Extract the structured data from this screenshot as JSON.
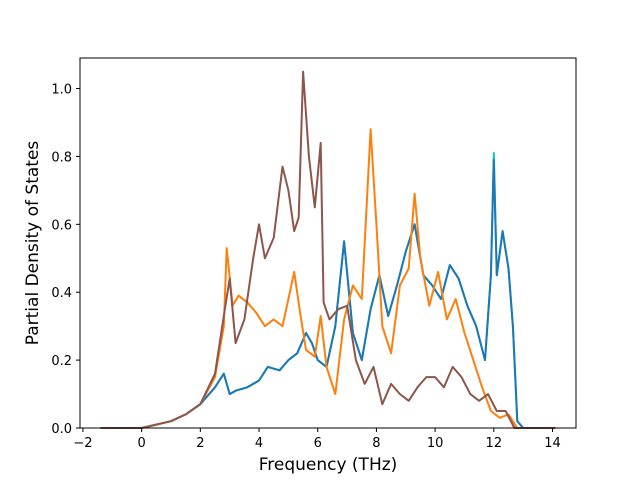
{
  "chart_data": {
    "type": "line",
    "title": "",
    "xlabel": "Frequency (THz)",
    "ylabel": "Partial Density of States",
    "xlim": [
      -2.1,
      14.8
    ],
    "ylim": [
      0.0,
      1.09
    ],
    "xticks": [
      -2,
      0,
      2,
      4,
      6,
      8,
      10,
      12,
      14
    ],
    "yticks": [
      0.0,
      0.2,
      0.4,
      0.6,
      0.8,
      1.0
    ],
    "xtick_labels": [
      "−2",
      "0",
      "2",
      "4",
      "6",
      "8",
      "10",
      "12",
      "14"
    ],
    "ytick_labels": [
      "0.0",
      "0.2",
      "0.4",
      "0.6",
      "0.8",
      "1.0"
    ],
    "grid": false,
    "series": [
      {
        "name": "teal",
        "color": "#17becf",
        "x": [
          -1.4,
          0.0,
          1.0,
          1.5,
          2.0,
          2.5,
          2.8,
          3.0,
          3.2,
          3.6,
          4.0,
          4.3,
          4.7,
          5.0,
          5.3,
          5.6,
          5.8,
          6.0,
          6.3,
          6.6,
          6.9,
          7.2,
          7.5,
          7.8,
          8.1,
          8.4,
          8.7,
          9.0,
          9.3,
          9.6,
          9.9,
          10.2,
          10.5,
          10.8,
          11.1,
          11.4,
          11.7,
          11.9,
          12.0,
          12.1,
          12.3,
          12.5,
          12.65,
          12.8,
          13.0,
          14.1
        ],
        "y": [
          0.0,
          0.0,
          0.02,
          0.04,
          0.07,
          0.12,
          0.16,
          0.1,
          0.11,
          0.12,
          0.14,
          0.18,
          0.17,
          0.2,
          0.22,
          0.28,
          0.25,
          0.2,
          0.18,
          0.3,
          0.55,
          0.28,
          0.2,
          0.35,
          0.45,
          0.33,
          0.42,
          0.52,
          0.6,
          0.45,
          0.42,
          0.38,
          0.48,
          0.44,
          0.36,
          0.3,
          0.2,
          0.45,
          0.81,
          0.45,
          0.58,
          0.47,
          0.3,
          0.02,
          0.0,
          0.0
        ]
      },
      {
        "name": "blue",
        "color": "#1f77b4",
        "x": [
          -1.4,
          0.0,
          1.0,
          1.5,
          2.0,
          2.5,
          2.8,
          3.0,
          3.2,
          3.6,
          4.0,
          4.3,
          4.7,
          5.0,
          5.3,
          5.6,
          5.8,
          6.0,
          6.3,
          6.6,
          6.9,
          7.2,
          7.5,
          7.8,
          8.1,
          8.4,
          8.7,
          9.0,
          9.3,
          9.6,
          9.9,
          10.2,
          10.5,
          10.8,
          11.1,
          11.4,
          11.7,
          11.9,
          12.0,
          12.1,
          12.3,
          12.5,
          12.65,
          12.8,
          13.0,
          14.1
        ],
        "y": [
          0.0,
          0.0,
          0.02,
          0.04,
          0.07,
          0.12,
          0.16,
          0.1,
          0.11,
          0.12,
          0.14,
          0.18,
          0.17,
          0.2,
          0.22,
          0.28,
          0.25,
          0.2,
          0.18,
          0.3,
          0.55,
          0.28,
          0.2,
          0.35,
          0.45,
          0.33,
          0.42,
          0.52,
          0.6,
          0.45,
          0.42,
          0.38,
          0.48,
          0.44,
          0.36,
          0.3,
          0.2,
          0.45,
          0.79,
          0.45,
          0.58,
          0.47,
          0.3,
          0.02,
          0.0,
          0.0
        ]
      },
      {
        "name": "orange",
        "color": "#ff7f0e",
        "x": [
          -1.4,
          0.0,
          1.0,
          1.5,
          2.0,
          2.5,
          2.8,
          2.9,
          3.1,
          3.3,
          3.6,
          3.9,
          4.2,
          4.5,
          4.8,
          5.0,
          5.2,
          5.4,
          5.6,
          5.9,
          6.1,
          6.3,
          6.6,
          6.9,
          7.2,
          7.5,
          7.8,
          8.0,
          8.2,
          8.5,
          8.8,
          9.1,
          9.3,
          9.5,
          9.8,
          10.1,
          10.4,
          10.7,
          11.0,
          11.3,
          11.6,
          11.9,
          12.2,
          12.5,
          12.8,
          13.0,
          14.1
        ],
        "y": [
          0.0,
          0.0,
          0.02,
          0.04,
          0.07,
          0.15,
          0.3,
          0.53,
          0.36,
          0.39,
          0.37,
          0.34,
          0.3,
          0.32,
          0.3,
          0.38,
          0.46,
          0.34,
          0.23,
          0.21,
          0.33,
          0.18,
          0.1,
          0.32,
          0.42,
          0.38,
          0.88,
          0.6,
          0.3,
          0.22,
          0.42,
          0.47,
          0.69,
          0.5,
          0.36,
          0.46,
          0.32,
          0.38,
          0.28,
          0.2,
          0.12,
          0.05,
          0.03,
          0.04,
          0.0,
          0.0,
          0.0
        ]
      },
      {
        "name": "brown",
        "color": "#8c564b",
        "x": [
          -1.4,
          0.0,
          1.0,
          1.5,
          2.0,
          2.5,
          2.8,
          3.0,
          3.2,
          3.5,
          3.8,
          4.0,
          4.2,
          4.5,
          4.8,
          5.0,
          5.2,
          5.35,
          5.5,
          5.7,
          5.9,
          6.1,
          6.2,
          6.4,
          6.7,
          7.0,
          7.3,
          7.6,
          7.9,
          8.2,
          8.5,
          8.8,
          9.1,
          9.4,
          9.7,
          10.0,
          10.3,
          10.6,
          10.9,
          11.2,
          11.5,
          11.8,
          12.1,
          12.4,
          12.7,
          13.0,
          14.1
        ],
        "y": [
          0.0,
          0.0,
          0.02,
          0.04,
          0.07,
          0.16,
          0.33,
          0.44,
          0.25,
          0.32,
          0.5,
          0.6,
          0.5,
          0.56,
          0.77,
          0.7,
          0.58,
          0.62,
          1.05,
          0.8,
          0.65,
          0.84,
          0.37,
          0.32,
          0.35,
          0.36,
          0.2,
          0.13,
          0.18,
          0.07,
          0.13,
          0.1,
          0.08,
          0.12,
          0.15,
          0.15,
          0.12,
          0.18,
          0.15,
          0.1,
          0.08,
          0.1,
          0.05,
          0.05,
          0.0,
          0.0,
          0.0
        ]
      }
    ]
  }
}
